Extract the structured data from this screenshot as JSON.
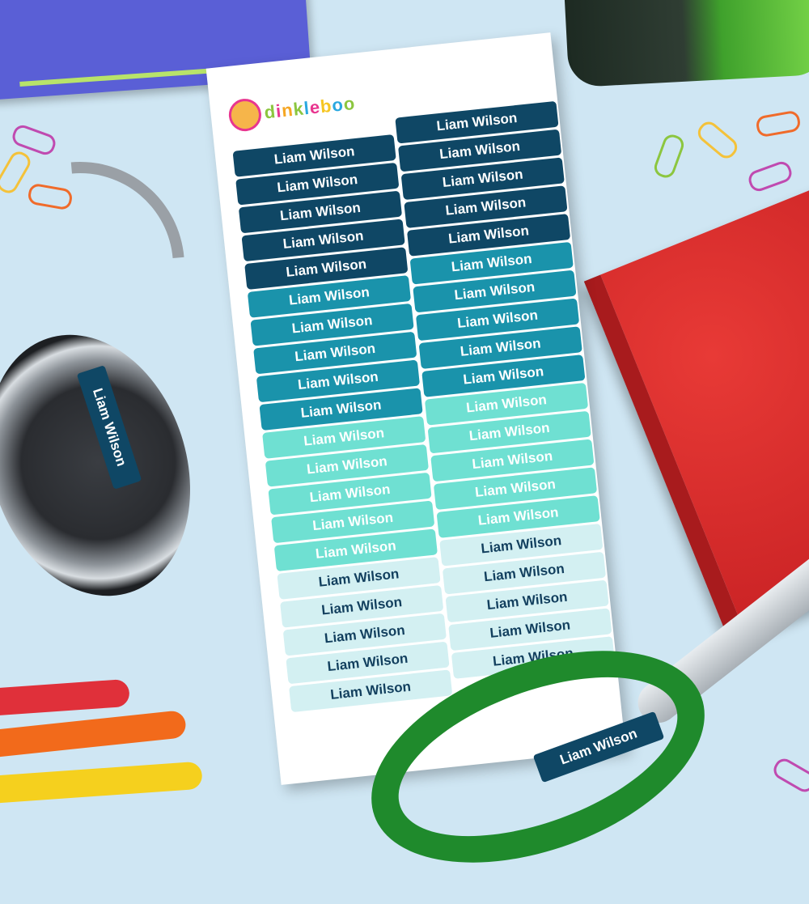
{
  "brand": {
    "name": "dinkleboo"
  },
  "colors": {
    "background": "#cfe6f3",
    "navy": "#0f4765",
    "teal": "#1a93ab",
    "aqua": "#6fe0d2",
    "pale": "#d3f0f2"
  },
  "sheet": {
    "groups": [
      {
        "color": "#0f4765",
        "text_color": "#ffffff"
      },
      {
        "color": "#1a93ab",
        "text_color": "#ffffff"
      },
      {
        "color": "#6fe0d2",
        "text_color": "#ffffff"
      },
      {
        "color": "#d3f0f2",
        "text_color": "#123f5e"
      }
    ],
    "label_text": "Liam Wilson",
    "labels_per_group": 5,
    "columns": 2
  },
  "headphone_label": "Liam Wilson",
  "scissors_label": "Liam Wilson"
}
